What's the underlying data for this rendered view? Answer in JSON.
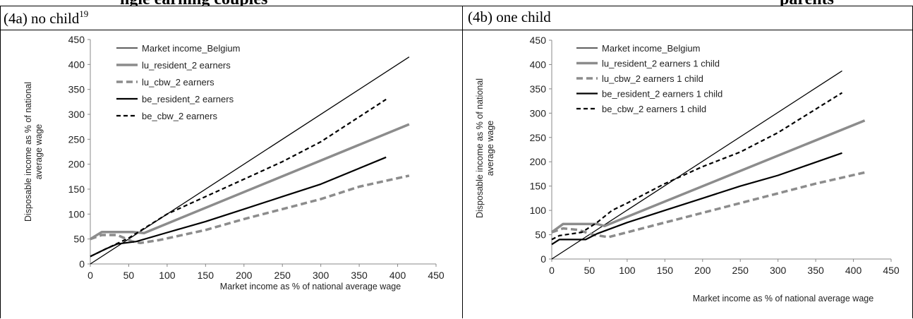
{
  "heading_fragments": [
    "ngle earning couples",
    "parents"
  ],
  "panels": [
    {
      "label": "(4a) no child",
      "label_sup": "19"
    },
    {
      "label": "(4b) one child",
      "label_sup": ""
    }
  ],
  "chart_data": [
    {
      "type": "line",
      "xlabel": "Market income as % of national average wage",
      "ylabel_lines": [
        "Disposable income as % of national",
        "average wage"
      ],
      "xlim": [
        0,
        450
      ],
      "ylim": [
        0,
        450
      ],
      "xticks": [
        0,
        50,
        100,
        150,
        200,
        250,
        300,
        350,
        400,
        450
      ],
      "yticks": [
        0,
        50,
        100,
        150,
        200,
        250,
        300,
        350,
        400,
        450
      ],
      "legend_position": "top-left",
      "series": [
        {
          "name": "Market income_Belgium",
          "color": "#000000",
          "style": "thin",
          "points": [
            [
              0,
              0
            ],
            [
              415,
              415
            ]
          ]
        },
        {
          "name": "lu_resident_2 earners",
          "color": "#8c8c8c",
          "style": "thick",
          "points": [
            [
              0,
              50
            ],
            [
              15,
              64
            ],
            [
              55,
              64
            ],
            [
              70,
              62
            ],
            [
              415,
              280
            ]
          ]
        },
        {
          "name": "lu_cbw_2 earners",
          "color": "#8c8c8c",
          "style": "dashed-thick",
          "points": [
            [
              0,
              50
            ],
            [
              15,
              58
            ],
            [
              35,
              58
            ],
            [
              55,
              45
            ],
            [
              65,
              42
            ],
            [
              90,
              48
            ],
            [
              150,
              68
            ],
            [
              200,
              90
            ],
            [
              250,
              110
            ],
            [
              300,
              130
            ],
            [
              350,
              155
            ],
            [
              415,
              177
            ]
          ]
        },
        {
          "name": "be_resident_2 earners",
          "color": "#000000",
          "style": "solid",
          "points": [
            [
              0,
              15
            ],
            [
              20,
              30
            ],
            [
              35,
              40
            ],
            [
              60,
              45
            ],
            [
              100,
              63
            ],
            [
              150,
              85
            ],
            [
              200,
              110
            ],
            [
              250,
              135
            ],
            [
              300,
              160
            ],
            [
              385,
              214
            ]
          ]
        },
        {
          "name": "be_cbw_2 earners",
          "color": "#000000",
          "style": "dashed",
          "points": [
            [
              0,
              15
            ],
            [
              20,
              30
            ],
            [
              50,
              52
            ],
            [
              100,
              100
            ],
            [
              150,
              135
            ],
            [
              200,
              170
            ],
            [
              250,
              205
            ],
            [
              300,
              245
            ],
            [
              385,
              330
            ]
          ]
        }
      ]
    },
    {
      "type": "line",
      "xlabel": "Market income as % of national average wage",
      "ylabel_lines": [
        "Disposable income as % of national",
        "average wage"
      ],
      "xlim": [
        0,
        450
      ],
      "ylim": [
        0,
        450
      ],
      "xticks": [
        0,
        50,
        100,
        150,
        200,
        250,
        300,
        350,
        400,
        450
      ],
      "yticks": [
        0,
        50,
        100,
        150,
        200,
        250,
        300,
        350,
        400,
        450
      ],
      "legend_position": "top-left",
      "series": [
        {
          "name": "Market income_Belgium",
          "color": "#000000",
          "style": "thin",
          "points": [
            [
              0,
              0
            ],
            [
              385,
              387
            ]
          ]
        },
        {
          "name": "lu_resident_2 earners 1 child",
          "color": "#8c8c8c",
          "style": "thick",
          "points": [
            [
              0,
              55
            ],
            [
              15,
              72
            ],
            [
              60,
              72
            ],
            [
              70,
              68
            ],
            [
              415,
              285
            ]
          ]
        },
        {
          "name": "lu_cbw_2 earners 1 child",
          "color": "#8c8c8c",
          "style": "dashed-thick",
          "points": [
            [
              0,
              55
            ],
            [
              15,
              63
            ],
            [
              35,
              60
            ],
            [
              55,
              50
            ],
            [
              75,
              45
            ],
            [
              100,
              55
            ],
            [
              150,
              75
            ],
            [
              200,
              95
            ],
            [
              250,
              115
            ],
            [
              300,
              135
            ],
            [
              350,
              155
            ],
            [
              415,
              178
            ]
          ]
        },
        {
          "name": "be_resident_2 earners 1 child",
          "color": "#000000",
          "style": "solid",
          "points": [
            [
              0,
              30
            ],
            [
              10,
              40
            ],
            [
              45,
              40
            ],
            [
              60,
              52
            ],
            [
              100,
              75
            ],
            [
              150,
              100
            ],
            [
              200,
              125
            ],
            [
              250,
              150
            ],
            [
              300,
              172
            ],
            [
              385,
              218
            ]
          ]
        },
        {
          "name": "be_cbw_2 earners 1 child",
          "color": "#000000",
          "style": "dashed",
          "points": [
            [
              0,
              40
            ],
            [
              10,
              48
            ],
            [
              40,
              55
            ],
            [
              60,
              75
            ],
            [
              80,
              100
            ],
            [
              100,
              115
            ],
            [
              150,
              155
            ],
            [
              200,
              190
            ],
            [
              250,
              220
            ],
            [
              300,
              260
            ],
            [
              385,
              342
            ]
          ]
        }
      ]
    }
  ]
}
